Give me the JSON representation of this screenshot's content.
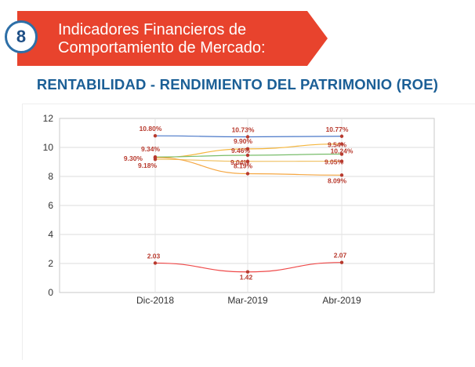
{
  "header": {
    "badge_number": "8",
    "title": "Indicadores Financieros de\nComportamiento de Mercado:",
    "banner_color": "#e8432d",
    "badge_color": "#2d6fa7"
  },
  "chart_data": {
    "type": "line",
    "title": "RENTABILIDAD - RENDIMIENTO DEL PATRIMONIO (ROE)",
    "categories": [
      "Dic-2018",
      "Mar-2019",
      "Abr-2019"
    ],
    "ylim": [
      0,
      12
    ],
    "yticks": [
      "0",
      "2",
      "4",
      "6",
      "8",
      "10",
      "12"
    ],
    "grid": true,
    "legend": "none",
    "label_color": "#b83a2e",
    "series": [
      {
        "color": "#4a78c8",
        "values": [
          10.8,
          10.73,
          10.77
        ],
        "labels": [
          "10.80%",
          "10.73%",
          "10.77%"
        ]
      },
      {
        "color": "#f5b63c",
        "values": [
          9.3,
          9.9,
          10.24
        ],
        "labels": [
          "9.30%",
          "9.90%",
          "10.24%"
        ]
      },
      {
        "color": "#79bd6b",
        "values": [
          9.34,
          9.46,
          9.54
        ],
        "labels": [
          "9.34%",
          "9.46%",
          "9.54%"
        ]
      },
      {
        "color": "#f0c46a",
        "values": [
          9.18,
          9.04,
          9.05
        ],
        "labels": [
          "9.18%",
          "9.04%",
          "9.05%"
        ]
      },
      {
        "color": "#f5a742",
        "values": [
          9.3,
          8.19,
          8.09
        ],
        "labels": [
          "",
          "8.19%",
          "8.09%"
        ]
      },
      {
        "color": "#ef4a4a",
        "values": [
          2.03,
          1.42,
          2.07
        ],
        "labels": [
          "2.03",
          "1.42",
          "2.07"
        ]
      }
    ]
  }
}
